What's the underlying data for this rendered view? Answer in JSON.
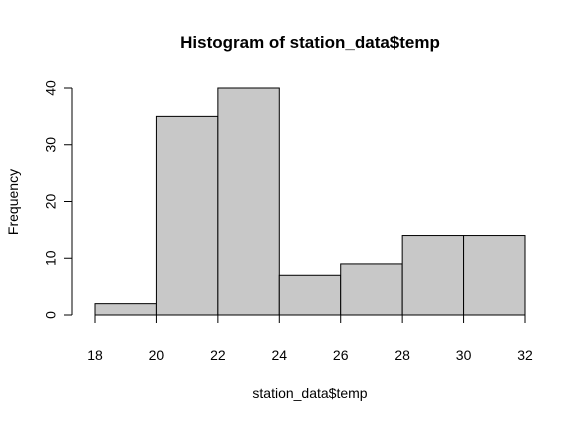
{
  "chart_data": {
    "type": "bar",
    "title": "Histogram of station_data$temp",
    "xlabel": "station_data$temp",
    "ylabel": "Frequency",
    "bins": [
      {
        "start": 18,
        "end": 20,
        "value": 2
      },
      {
        "start": 20,
        "end": 22,
        "value": 35
      },
      {
        "start": 22,
        "end": 24,
        "value": 40
      },
      {
        "start": 24,
        "end": 26,
        "value": 7
      },
      {
        "start": 26,
        "end": 28,
        "value": 9
      },
      {
        "start": 28,
        "end": 30,
        "value": 14
      },
      {
        "start": 30,
        "end": 32,
        "value": 14
      }
    ],
    "xlim": [
      18,
      32
    ],
    "ylim": [
      0,
      40
    ],
    "xticks": [
      "18",
      "20",
      "22",
      "24",
      "26",
      "28",
      "30",
      "32"
    ],
    "yticks": [
      "0",
      "10",
      "20",
      "30",
      "40"
    ],
    "grid": false,
    "colors": {
      "bar_fill": "#c8c8c8",
      "bar_stroke": "#000000",
      "axis": "#000000",
      "text": "#000000"
    }
  }
}
